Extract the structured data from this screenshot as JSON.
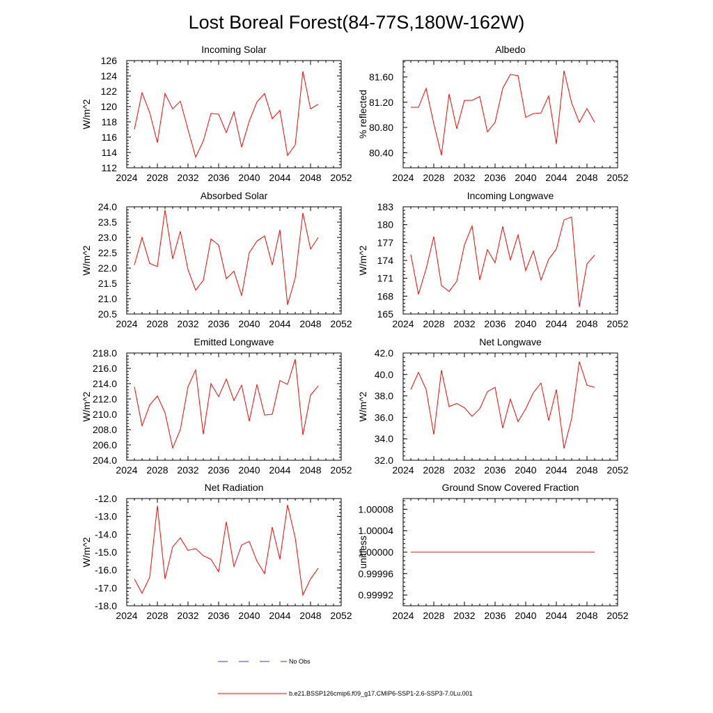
{
  "figure": {
    "title": "Lost Boreal Forest(84-77S,180W-162W)"
  },
  "legend": [
    {
      "label": "No Obs",
      "color": "#3a3ad0",
      "style": "dashed"
    },
    {
      "label": "b.e21.BSSP126cmip6.f09_g17.CMIP6-SSP1-2.6-SSP3-7.0Lu.001",
      "color": "#ff0000",
      "style": "solid"
    }
  ],
  "chart_data": [
    {
      "type": "line",
      "title": "Incoming Solar",
      "ylabel": "W/m^2",
      "xlim": [
        2024,
        2052
      ],
      "ylim": [
        112,
        126
      ],
      "xticks": [
        "2024",
        "2028",
        "2032",
        "2036",
        "2040",
        "2044",
        "2048",
        "2052"
      ],
      "yticks": [
        112,
        114,
        116,
        118,
        120,
        122,
        124,
        126
      ],
      "ytick_labels": [
        "112",
        "114",
        "116",
        "118",
        "120",
        "122",
        "124",
        "126"
      ],
      "x": [
        2025,
        2026,
        2027,
        2028,
        2029,
        2030,
        2031,
        2032,
        2033,
        2034,
        2035,
        2036,
        2037,
        2038,
        2039,
        2040,
        2041,
        2042,
        2043,
        2044,
        2045,
        2046,
        2047,
        2048,
        2049
      ],
      "series": [
        {
          "color": "#ff0000",
          "values": [
            117.0,
            121.8,
            119.2,
            115.3,
            121.7,
            119.7,
            120.7,
            117.0,
            113.4,
            115.5,
            119.1,
            119.0,
            116.6,
            119.3,
            114.7,
            118.1,
            120.6,
            121.7,
            118.4,
            119.5,
            113.6,
            115.0,
            124.6,
            119.7,
            120.3
          ]
        }
      ]
    },
    {
      "type": "line",
      "title": "Albedo",
      "ylabel": "% reflected",
      "xlim": [
        2024,
        2052
      ],
      "ylim": [
        80.16,
        81.86
      ],
      "xticks": [
        "2024",
        "2028",
        "2032",
        "2036",
        "2040",
        "2044",
        "2048",
        "2052"
      ],
      "yticks": [
        80.4,
        80.8,
        81.2,
        81.6
      ],
      "ytick_labels": [
        "80.40",
        "80.80",
        "81.20",
        "81.60"
      ],
      "x": [
        2025,
        2026,
        2027,
        2028,
        2029,
        2030,
        2031,
        2032,
        2033,
        2034,
        2035,
        2036,
        2037,
        2038,
        2039,
        2040,
        2041,
        2042,
        2043,
        2044,
        2045,
        2046,
        2047,
        2048,
        2049
      ],
      "series": [
        {
          "color": "#ff0000",
          "values": [
            81.12,
            81.12,
            81.42,
            80.86,
            80.36,
            81.33,
            80.78,
            81.23,
            81.23,
            81.29,
            80.73,
            80.88,
            81.42,
            81.64,
            81.62,
            80.96,
            81.02,
            81.03,
            81.3,
            80.54,
            81.7,
            81.19,
            80.88,
            81.1,
            80.88
          ]
        }
      ]
    },
    {
      "type": "line",
      "title": "Absorbed Solar",
      "ylabel": "W/m^2",
      "xlim": [
        2024,
        2052
      ],
      "ylim": [
        20.5,
        24.0
      ],
      "xticks": [
        "2024",
        "2028",
        "2032",
        "2036",
        "2040",
        "2044",
        "2048",
        "2052"
      ],
      "yticks": [
        20.5,
        21.0,
        21.5,
        22.0,
        22.5,
        23.0,
        23.5,
        24.0
      ],
      "ytick_labels": [
        "20.5",
        "21.0",
        "21.5",
        "22.0",
        "22.5",
        "23.0",
        "23.5",
        "24.0"
      ],
      "x": [
        2025,
        2026,
        2027,
        2028,
        2029,
        2030,
        2031,
        2032,
        2033,
        2034,
        2035,
        2036,
        2037,
        2038,
        2039,
        2040,
        2041,
        2042,
        2043,
        2044,
        2045,
        2046,
        2047,
        2048,
        2049
      ],
      "series": [
        {
          "color": "#ff0000",
          "values": [
            22.1,
            23.0,
            22.15,
            22.05,
            23.9,
            22.3,
            23.2,
            21.95,
            21.28,
            21.6,
            22.95,
            22.75,
            21.65,
            21.9,
            21.1,
            22.5,
            22.88,
            23.05,
            22.1,
            23.25,
            20.8,
            21.68,
            23.8,
            22.62,
            23.0
          ]
        }
      ]
    },
    {
      "type": "line",
      "title": "Incoming Longwave",
      "ylabel": "W/m^2",
      "xlim": [
        2024,
        2052
      ],
      "ylim": [
        165,
        183
      ],
      "xticks": [
        "2024",
        "2028",
        "2032",
        "2036",
        "2040",
        "2044",
        "2048",
        "2052"
      ],
      "yticks": [
        165,
        168,
        171,
        174,
        177,
        180,
        183
      ],
      "ytick_labels": [
        "165",
        "168",
        "171",
        "174",
        "177",
        "180",
        "183"
      ],
      "x": [
        2025,
        2026,
        2027,
        2028,
        2029,
        2030,
        2031,
        2032,
        2033,
        2034,
        2035,
        2036,
        2037,
        2038,
        2039,
        2040,
        2041,
        2042,
        2043,
        2044,
        2045,
        2046,
        2047,
        2048,
        2049
      ],
      "series": [
        {
          "color": "#ff0000",
          "values": [
            175.0,
            168.3,
            172.6,
            178.0,
            169.8,
            168.8,
            170.5,
            176.6,
            179.8,
            170.7,
            175.8,
            173.6,
            179.7,
            174.1,
            178.3,
            172.3,
            175.6,
            170.7,
            174.2,
            175.9,
            180.8,
            181.3,
            166.2,
            173.4,
            174.9
          ]
        }
      ]
    },
    {
      "type": "line",
      "title": "Emitted Longwave",
      "ylabel": "W/m^2",
      "xlim": [
        2024,
        2052
      ],
      "ylim": [
        204,
        218
      ],
      "xticks": [
        "2024",
        "2028",
        "2032",
        "2036",
        "2040",
        "2044",
        "2048",
        "2052"
      ],
      "yticks": [
        204,
        206,
        208,
        210,
        212,
        214,
        216,
        218
      ],
      "ytick_labels": [
        "204.0",
        "206.0",
        "208.0",
        "210.0",
        "212.0",
        "214.0",
        "216.0",
        "218.0"
      ],
      "x": [
        2025,
        2026,
        2027,
        2028,
        2029,
        2030,
        2031,
        2032,
        2033,
        2034,
        2035,
        2036,
        2037,
        2038,
        2039,
        2040,
        2041,
        2042,
        2043,
        2044,
        2045,
        2046,
        2047,
        2048,
        2049
      ],
      "series": [
        {
          "color": "#ff0000",
          "values": [
            213.6,
            208.5,
            211.2,
            212.4,
            210.2,
            205.6,
            208.0,
            213.6,
            215.8,
            207.4,
            214.0,
            212.3,
            214.6,
            211.8,
            213.8,
            209.1,
            213.9,
            209.9,
            210.0,
            214.4,
            213.9,
            217.2,
            207.3,
            212.5,
            213.7
          ]
        }
      ]
    },
    {
      "type": "line",
      "title": "Net Longwave",
      "ylabel": "W/m^2",
      "xlim": [
        2024,
        2052
      ],
      "ylim": [
        32,
        42
      ],
      "xticks": [
        "2024",
        "2028",
        "2032",
        "2036",
        "2040",
        "2044",
        "2048",
        "2052"
      ],
      "yticks": [
        32,
        34,
        36,
        38,
        40,
        42
      ],
      "ytick_labels": [
        "32.0",
        "34.0",
        "36.0",
        "38.0",
        "40.0",
        "42.0"
      ],
      "x": [
        2025,
        2026,
        2027,
        2028,
        2029,
        2030,
        2031,
        2032,
        2033,
        2034,
        2035,
        2036,
        2037,
        2038,
        2039,
        2040,
        2041,
        2042,
        2043,
        2044,
        2045,
        2046,
        2047,
        2048,
        2049
      ],
      "series": [
        {
          "color": "#ff0000",
          "values": [
            38.6,
            40.2,
            38.6,
            34.4,
            40.4,
            37.0,
            37.3,
            36.9,
            36.1,
            36.8,
            38.4,
            38.8,
            35.0,
            37.7,
            35.6,
            36.8,
            38.3,
            39.2,
            35.7,
            38.6,
            33.1,
            35.9,
            41.2,
            39.0,
            38.8
          ]
        }
      ]
    },
    {
      "type": "line",
      "title": "Net Radiation",
      "ylabel": "W/m^2",
      "xlim": [
        2024,
        2052
      ],
      "ylim": [
        -18,
        -12
      ],
      "xticks": [
        "2024",
        "2028",
        "2032",
        "2036",
        "2040",
        "2044",
        "2048",
        "2052"
      ],
      "yticks": [
        -18,
        -17,
        -16,
        -15,
        -14,
        -13,
        -12
      ],
      "ytick_labels": [
        "-18.0",
        "-17.0",
        "-16.0",
        "-15.0",
        "-14.0",
        "-13.0",
        "-12.0"
      ],
      "x": [
        2025,
        2026,
        2027,
        2028,
        2029,
        2030,
        2031,
        2032,
        2033,
        2034,
        2035,
        2036,
        2037,
        2038,
        2039,
        2040,
        2041,
        2042,
        2043,
        2044,
        2045,
        2046,
        2047,
        2048,
        2049
      ],
      "series": [
        {
          "color": "#ff0000",
          "values": [
            -16.5,
            -17.3,
            -16.4,
            -12.4,
            -16.5,
            -14.7,
            -14.2,
            -14.9,
            -14.8,
            -15.2,
            -15.4,
            -16.1,
            -13.3,
            -15.8,
            -14.6,
            -14.4,
            -15.5,
            -16.2,
            -13.6,
            -15.4,
            -12.35,
            -14.2,
            -17.4,
            -16.5,
            -15.9
          ]
        }
      ]
    },
    {
      "type": "line",
      "title": "Ground Snow Covered Fraction",
      "ylabel": "unitless",
      "xlim": [
        2024,
        2052
      ],
      "ylim": [
        0.9999,
        1.0001
      ],
      "xticks": [
        "2024",
        "2028",
        "2032",
        "2036",
        "2040",
        "2044",
        "2048",
        "2052"
      ],
      "yticks": [
        0.99992,
        0.99996,
        1.0,
        1.00004,
        1.00008
      ],
      "ytick_labels": [
        "0.99992",
        "0.99996",
        "1.00000",
        "1.00004",
        "1.00008"
      ],
      "x": [
        2025,
        2026,
        2027,
        2028,
        2029,
        2030,
        2031,
        2032,
        2033,
        2034,
        2035,
        2036,
        2037,
        2038,
        2039,
        2040,
        2041,
        2042,
        2043,
        2044,
        2045,
        2046,
        2047,
        2048,
        2049
      ],
      "series": [
        {
          "color": "#ff0000",
          "values": [
            1.0,
            1.0,
            1.0,
            1.0,
            1.0,
            1.0,
            1.0,
            1.0,
            1.0,
            1.0,
            1.0,
            1.0,
            1.0,
            1.0,
            1.0,
            1.0,
            1.0,
            1.0,
            1.0,
            1.0,
            1.0,
            1.0,
            1.0,
            1.0,
            1.0
          ]
        }
      ]
    }
  ]
}
